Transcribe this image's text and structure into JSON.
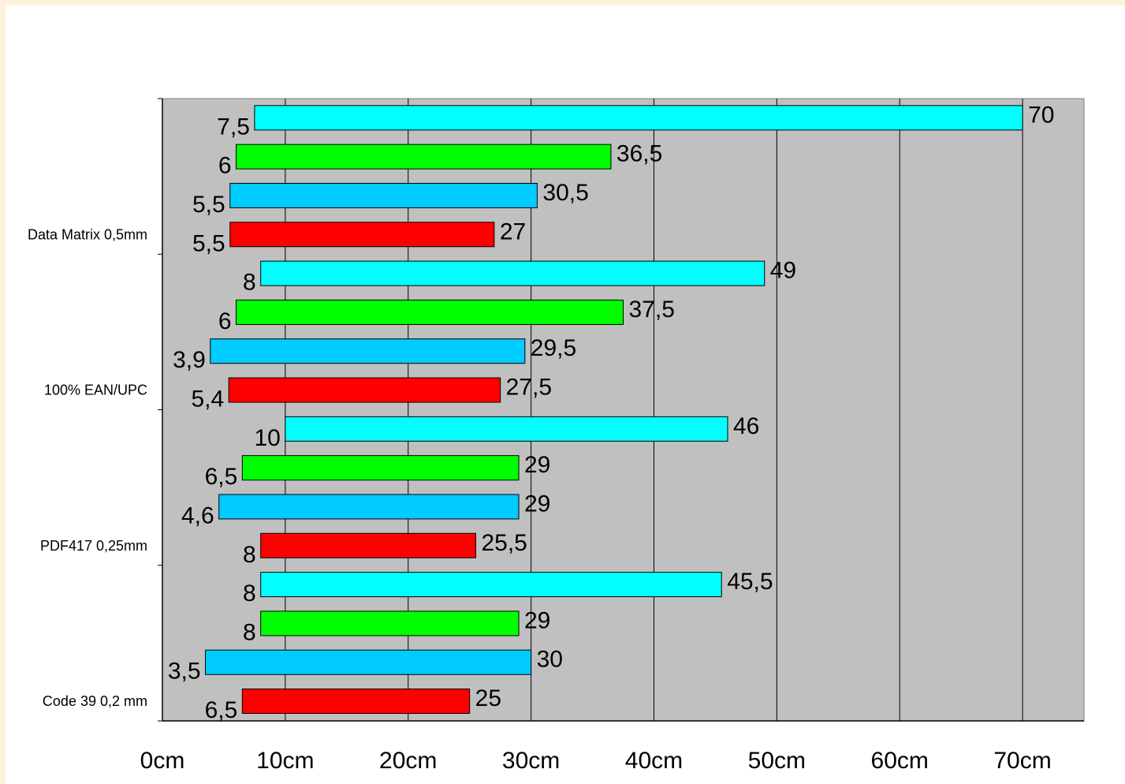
{
  "chart_data": {
    "type": "bar",
    "orientation": "horizontal",
    "floating": true,
    "xlim": [
      0,
      75
    ],
    "x_ticks": [
      "0cm",
      "10cm",
      "20cm",
      "30cm",
      "40cm",
      "50cm",
      "60cm",
      "70cm"
    ],
    "grid": "vertical",
    "legend": "none",
    "colors": [
      "#ff0000",
      "#00ccff",
      "#00ff00",
      "#00ffff"
    ],
    "groups": [
      {
        "label": "Code 39 0,2 mm",
        "bars": [
          {
            "start": 6.5,
            "end": 25,
            "start_label": "6,5",
            "end_label": "25",
            "color": "#ff0000"
          },
          {
            "start": 3.5,
            "end": 30,
            "start_label": "3,5",
            "end_label": "30",
            "color": "#00ccff"
          },
          {
            "start": 8,
            "end": 29,
            "start_label": "8",
            "end_label": "29",
            "color": "#00ff00"
          },
          {
            "start": 8,
            "end": 45.5,
            "start_label": "8",
            "end_label": "45,5",
            "color": "#00ffff"
          }
        ]
      },
      {
        "label": "PDF417 0,25mm",
        "bars": [
          {
            "start": 8,
            "end": 25.5,
            "start_label": "8",
            "end_label": "25,5",
            "color": "#ff0000"
          },
          {
            "start": 4.6,
            "end": 29,
            "start_label": "4,6",
            "end_label": "29",
            "color": "#00ccff"
          },
          {
            "start": 6.5,
            "end": 29,
            "start_label": "6,5",
            "end_label": "29",
            "color": "#00ff00"
          },
          {
            "start": 10,
            "end": 46,
            "start_label": "10",
            "end_label": "46",
            "color": "#00ffff"
          }
        ]
      },
      {
        "label": "100% EAN/UPC",
        "bars": [
          {
            "start": 5.4,
            "end": 27.5,
            "start_label": "5,4",
            "end_label": "27,5",
            "color": "#ff0000"
          },
          {
            "start": 3.9,
            "end": 29.5,
            "start_label": "3,9",
            "end_label": "29,5",
            "color": "#00ccff"
          },
          {
            "start": 6,
            "end": 37.5,
            "start_label": "6",
            "end_label": "37,5",
            "color": "#00ff00"
          },
          {
            "start": 8,
            "end": 49,
            "start_label": "8",
            "end_label": "49",
            "color": "#00ffff"
          }
        ]
      },
      {
        "label": "Data Matrix 0,5mm",
        "bars": [
          {
            "start": 5.5,
            "end": 27,
            "start_label": "5,5",
            "end_label": "27",
            "color": "#ff0000"
          },
          {
            "start": 5.5,
            "end": 30.5,
            "start_label": "5,5",
            "end_label": "30,5",
            "color": "#00ccff"
          },
          {
            "start": 6,
            "end": 36.5,
            "start_label": "6",
            "end_label": "36,5",
            "color": "#00ff00"
          },
          {
            "start": 7.5,
            "end": 70,
            "start_label": "7,5",
            "end_label": "70",
            "color": "#00ffff"
          }
        ]
      }
    ]
  }
}
